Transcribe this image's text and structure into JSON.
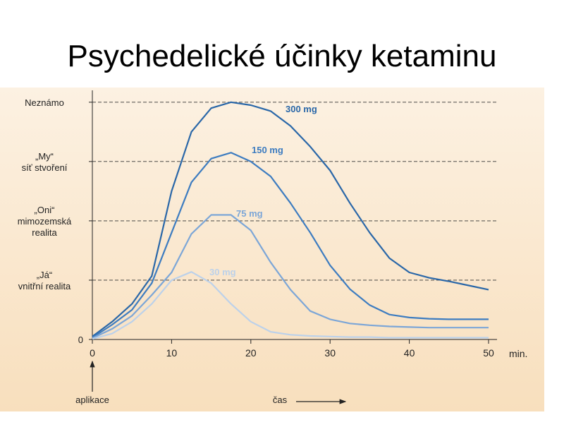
{
  "title": "Psychedelické účinky ketaminu",
  "chart_data": {
    "type": "line",
    "x": [
      0,
      2.5,
      5,
      7.5,
      10,
      12.5,
      15,
      17.5,
      20,
      22.5,
      25,
      27.5,
      30,
      32.5,
      35,
      37.5,
      40,
      42.5,
      45,
      47.5,
      50
    ],
    "series": [
      {
        "name": "300 mg",
        "color": "#2a67a8",
        "values": [
          0.05,
          0.3,
          0.6,
          1.07,
          2.5,
          3.5,
          3.9,
          4.0,
          3.95,
          3.85,
          3.6,
          3.25,
          2.85,
          2.3,
          1.8,
          1.37,
          1.13,
          1.04,
          0.98,
          0.91,
          0.84
        ]
      },
      {
        "name": "150 mg",
        "color": "#3d7cc0",
        "values": [
          0.03,
          0.25,
          0.5,
          0.95,
          1.8,
          2.65,
          3.05,
          3.15,
          3.0,
          2.75,
          2.3,
          1.8,
          1.25,
          0.85,
          0.58,
          0.42,
          0.37,
          0.35,
          0.34,
          0.34,
          0.34
        ]
      },
      {
        "name": "75 mg",
        "color": "#7ca6d7",
        "values": [
          0.02,
          0.18,
          0.4,
          0.75,
          1.13,
          1.78,
          2.1,
          2.1,
          1.84,
          1.3,
          0.84,
          0.48,
          0.34,
          0.27,
          0.24,
          0.22,
          0.21,
          0.2,
          0.2,
          0.2,
          0.2
        ]
      },
      {
        "name": "30 mg",
        "color": "#bcd1ea",
        "values": [
          0.01,
          0.1,
          0.3,
          0.6,
          1.0,
          1.14,
          0.95,
          0.6,
          0.3,
          0.13,
          0.08,
          0.06,
          0.05,
          0.04,
          0.04,
          0.03,
          0.03,
          0.03,
          0.03,
          0.03,
          0.03
        ]
      }
    ],
    "xlim": [
      0,
      50
    ],
    "xticks": [
      0,
      10,
      20,
      30,
      40,
      50
    ],
    "x_label": "min.",
    "ylim": [
      0,
      4.2
    ],
    "yticks": [
      0,
      {
        "value": 1,
        "label": "„Já“\nvnitřní realita"
      },
      {
        "value": 2,
        "label": "„Oni“\nmimozemská\nrealita"
      },
      {
        "value": 3,
        "label": "„My“\nsíť stvoření"
      },
      {
        "value": 4,
        "label": "Neznámo"
      }
    ],
    "grid": true,
    "annotations": [
      "aplikace",
      "čas"
    ]
  }
}
